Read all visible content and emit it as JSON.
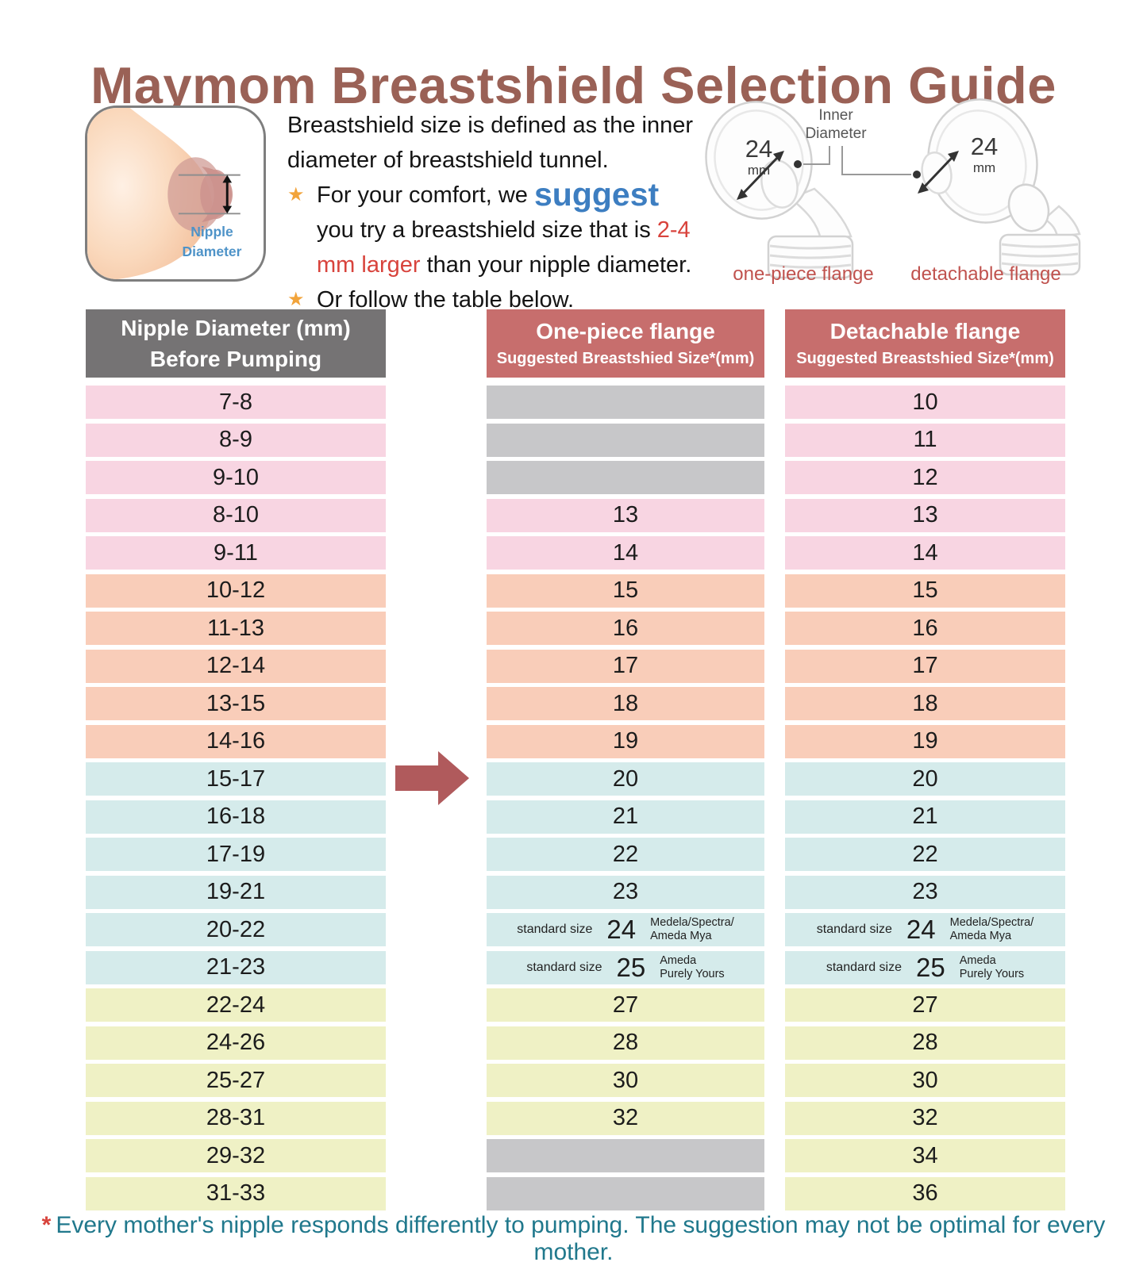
{
  "title": "Maymom Breastshield Selection Guide",
  "intro": {
    "sentence1": "Breastshield size is defined as the inner diameter of breastshield tunnel.",
    "b1_pre": "For your comfort, we ",
    "b1_suggest": "suggest",
    "b1_mid": " you try a breastshield size that is ",
    "b1_red": "2-4 mm larger",
    "b1_post": " than your nipple diameter.",
    "bullet2": "Or follow the table below."
  },
  "breast_diagram": {
    "label": "Nipple\nDiameter"
  },
  "flanges": {
    "inner_label": "Inner\nDiameter",
    "one_piece": {
      "size": "24",
      "unit": "mm",
      "caption": "one-piece flange"
    },
    "detachable": {
      "size": "24",
      "unit": "mm",
      "caption": "detachable flange"
    }
  },
  "table": {
    "headers": {
      "col1": {
        "line1": "Nipple Diameter (mm)",
        "line2": "Before Pumping"
      },
      "col2": {
        "line1": "One-piece flange",
        "line2": "Suggested Breastshied Size*(mm)"
      },
      "col3": {
        "line1": "Detachable flange",
        "line2": "Suggested Breastshied Size*(mm)"
      }
    },
    "rows": [
      {
        "nipple": "7-8",
        "one": null,
        "det": "10",
        "tone": "pink"
      },
      {
        "nipple": "8-9",
        "one": null,
        "det": "11",
        "tone": "pink"
      },
      {
        "nipple": "9-10",
        "one": null,
        "det": "12",
        "tone": "pink"
      },
      {
        "nipple": "8-10",
        "one": "13",
        "det": "13",
        "tone": "pink"
      },
      {
        "nipple": "9-11",
        "one": "14",
        "det": "14",
        "tone": "pink"
      },
      {
        "nipple": "10-12",
        "one": "15",
        "det": "15",
        "tone": "salmon"
      },
      {
        "nipple": "11-13",
        "one": "16",
        "det": "16",
        "tone": "salmon"
      },
      {
        "nipple": "12-14",
        "one": "17",
        "det": "17",
        "tone": "salmon"
      },
      {
        "nipple": "13-15",
        "one": "18",
        "det": "18",
        "tone": "salmon"
      },
      {
        "nipple": "14-16",
        "one": "19",
        "det": "19",
        "tone": "salmon"
      },
      {
        "nipple": "15-17",
        "one": "20",
        "det": "20",
        "tone": "teal"
      },
      {
        "nipple": "16-18",
        "one": "21",
        "det": "21",
        "tone": "teal"
      },
      {
        "nipple": "17-19",
        "one": "22",
        "det": "22",
        "tone": "teal"
      },
      {
        "nipple": "19-21",
        "one": "23",
        "det": "23",
        "tone": "teal"
      },
      {
        "nipple": "20-22",
        "one": {
          "label": "standard size",
          "size": "24",
          "brands": "Medela/Spectra/\nAmeda Mya"
        },
        "det": {
          "label": "standard size",
          "size": "24",
          "brands": "Medela/Spectra/\nAmeda Mya"
        },
        "tone": "teal"
      },
      {
        "nipple": "21-23",
        "one": {
          "label": "standard size",
          "size": "25",
          "brands": "Ameda\nPurely Yours"
        },
        "det": {
          "label": "standard size",
          "size": "25",
          "brands": "Ameda\nPurely Yours"
        },
        "tone": "teal"
      },
      {
        "nipple": "22-24",
        "one": "27",
        "det": "27",
        "tone": "yellow"
      },
      {
        "nipple": "24-26",
        "one": "28",
        "det": "28",
        "tone": "yellow"
      },
      {
        "nipple": "25-27",
        "one": "30",
        "det": "30",
        "tone": "yellow"
      },
      {
        "nipple": "28-31",
        "one": "32",
        "det": "32",
        "tone": "yellow"
      },
      {
        "nipple": "29-32",
        "one": null,
        "det": "34",
        "tone": "yellow"
      },
      {
        "nipple": "31-33",
        "one": null,
        "det": "36",
        "tone": "yellow"
      }
    ]
  },
  "footer": {
    "asterisk": "*",
    "text": "Every mother's nipple responds differently to pumping. The suggestion may not be optimal for every mother."
  },
  "colors": {
    "title_brown": "#9A6156",
    "header_gray": "#757374",
    "header_rose": "#C76E6D",
    "row_pink": "#F8D5E2",
    "row_salmon": "#F9CDB9",
    "row_teal": "#D5EBEB",
    "row_yellow": "#EFF1C5",
    "empty_gray": "#C7C7C9",
    "arrow_rose": "#B05A5C",
    "footer_teal": "#20788C",
    "accent_red": "#D8433C",
    "accent_blue": "#3D7EC1",
    "star_orange": "#F2A43B",
    "caption_rose": "#C0524E"
  }
}
